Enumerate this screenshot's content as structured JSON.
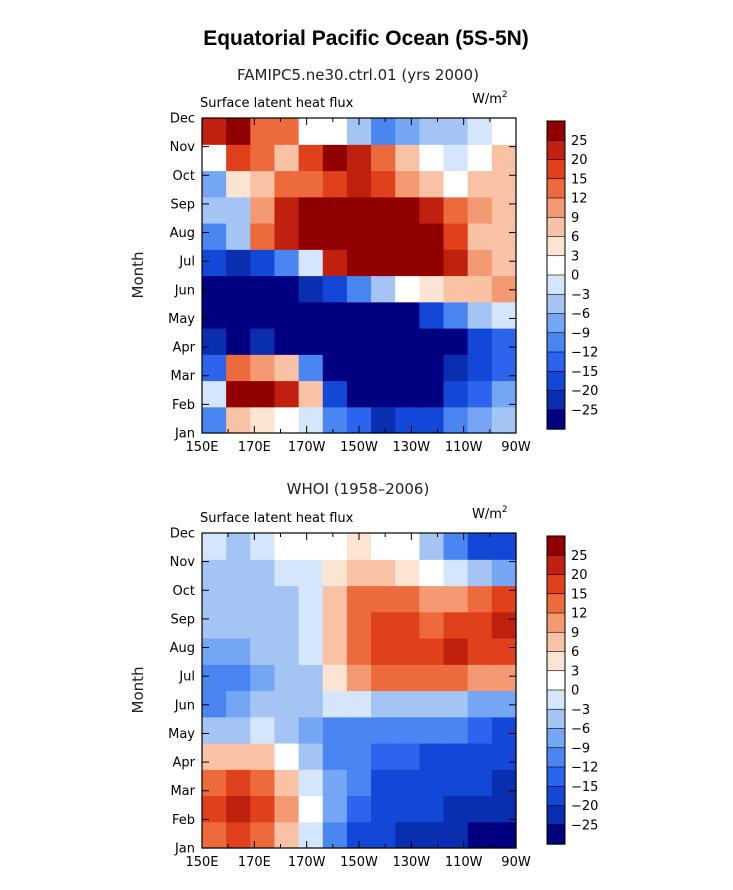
{
  "title": "Equatorial Pacific Ocean (5S-5N)",
  "colors": [
    "#000080",
    "#0a2eb0",
    "#1347d8",
    "#2c64ee",
    "#4a86f2",
    "#74a6f4",
    "#a4c4f4",
    "#d6e6fa",
    "#ffffff",
    "#fce4d2",
    "#f9c2a4",
    "#f49a72",
    "#ed6a3c",
    "#e0401c",
    "#c0200e",
    "#900000"
  ],
  "chart_data": [
    {
      "type": "heatmap",
      "subtitle": "FAMIPC5.ne30.ctrl.01 (yrs 2000)",
      "label_left": "Surface latent heat flux",
      "units_base": "W/m",
      "units_exp": "2",
      "ylabel": "Month",
      "xlabel": "",
      "x_ticks": [
        "150E",
        "170E",
        "170W",
        "150W",
        "130W",
        "110W",
        "90W"
      ],
      "y_ticks": [
        "Jan",
        "Feb",
        "Mar",
        "Apr",
        "May",
        "Jun",
        "Jul",
        "Aug",
        "Sep",
        "Oct",
        "Nov",
        "Dec"
      ],
      "xlim_lon": [
        150,
        270
      ],
      "levels": [
        -25,
        -20,
        -15,
        -12,
        -9,
        -6,
        -3,
        0,
        3,
        6,
        9,
        12,
        15,
        20,
        25
      ],
      "level_labels": [
        "25",
        "20",
        "15",
        "12",
        "9",
        "6",
        "3",
        "0",
        "−3",
        "−6",
        "−9",
        "−12",
        "−15",
        "−20",
        "−25"
      ],
      "grid_lons": [
        150,
        160,
        170,
        180,
        190,
        200,
        210,
        220,
        230,
        240,
        250,
        260,
        270
      ],
      "grid_values": [
        [
          -10,
          6,
          3,
          0,
          -3,
          -12,
          -15,
          -22,
          -20,
          -18,
          -12,
          -8,
          -5
        ],
        [
          -2,
          30,
          28,
          22,
          6,
          -20,
          -28,
          -30,
          -30,
          -26,
          -20,
          -14,
          -8
        ],
        [
          -14,
          14,
          10,
          6,
          -10,
          -28,
          -30,
          -30,
          -30,
          -28,
          -24,
          -20,
          -14
        ],
        [
          -24,
          -26,
          -24,
          -26,
          -30,
          -30,
          -30,
          -30,
          -30,
          -30,
          -28,
          -20,
          -15
        ],
        [
          -30,
          -30,
          -30,
          -30,
          -30,
          -30,
          -30,
          -30,
          -26,
          -18,
          -12,
          -6,
          -2
        ],
        [
          -26,
          -28,
          -30,
          -26,
          -24,
          -18,
          -10,
          -4,
          0,
          4,
          6,
          8,
          10
        ],
        [
          -18,
          -24,
          -20,
          -12,
          -2,
          20,
          26,
          28,
          28,
          28,
          22,
          10,
          8
        ],
        [
          -12,
          -6,
          12,
          22,
          26,
          28,
          28,
          28,
          28,
          26,
          16,
          8,
          6
        ],
        [
          -6,
          -4,
          10,
          22,
          28,
          28,
          28,
          28,
          28,
          22,
          14,
          10,
          6
        ],
        [
          -8,
          4,
          8,
          12,
          14,
          18,
          20,
          16,
          10,
          6,
          2,
          6,
          8
        ],
        [
          2,
          18,
          12,
          8,
          18,
          26,
          24,
          14,
          6,
          2,
          -2,
          2,
          6
        ],
        [
          24,
          26,
          14,
          12,
          2,
          0,
          -6,
          -10,
          -8,
          -6,
          -4,
          -2,
          2
        ]
      ]
    },
    {
      "type": "heatmap",
      "subtitle": "WHOI (1958–2006)",
      "label_left": "Surface latent heat flux",
      "units_base": "W/m",
      "units_exp": "2",
      "ylabel": "Month",
      "xlabel": "",
      "x_ticks": [
        "150E",
        "170E",
        "170W",
        "150W",
        "130W",
        "110W",
        "90W"
      ],
      "y_ticks": [
        "Jan",
        "Feb",
        "Mar",
        "Apr",
        "May",
        "Jun",
        "Jul",
        "Aug",
        "Sep",
        "Oct",
        "Nov",
        "Dec"
      ],
      "xlim_lon": [
        150,
        270
      ],
      "levels": [
        -25,
        -20,
        -15,
        -12,
        -9,
        -6,
        -3,
        0,
        3,
        6,
        9,
        12,
        15,
        20,
        25
      ],
      "level_labels": [
        "25",
        "20",
        "15",
        "12",
        "9",
        "6",
        "3",
        "0",
        "−3",
        "−6",
        "−9",
        "−12",
        "−15",
        "−20",
        "−25"
      ],
      "grid_lons": [
        150,
        160,
        170,
        180,
        190,
        200,
        210,
        220,
        230,
        240,
        250,
        260,
        270
      ],
      "grid_values": [
        [
          12,
          16,
          14,
          8,
          -2,
          -10,
          -16,
          -20,
          -22,
          -22,
          -24,
          -26,
          -28
        ],
        [
          18,
          20,
          16,
          10,
          0,
          -8,
          -14,
          -18,
          -20,
          -20,
          -22,
          -24,
          -24
        ],
        [
          14,
          16,
          12,
          6,
          -2,
          -8,
          -12,
          -16,
          -16,
          -18,
          -18,
          -20,
          -22
        ],
        [
          6,
          8,
          6,
          2,
          -4,
          -10,
          -12,
          -14,
          -14,
          -16,
          -16,
          -18,
          -20
        ],
        [
          -4,
          -4,
          -2,
          -4,
          -8,
          -10,
          -12,
          -12,
          -12,
          -12,
          -12,
          -14,
          -16
        ],
        [
          -10,
          -8,
          -6,
          -6,
          -4,
          -2,
          -2,
          -4,
          -4,
          -6,
          -6,
          -8,
          -8
        ],
        [
          -10,
          -12,
          -8,
          -6,
          -4,
          4,
          10,
          12,
          12,
          12,
          12,
          10,
          10
        ],
        [
          -8,
          -8,
          -6,
          -4,
          -2,
          6,
          12,
          16,
          18,
          18,
          20,
          18,
          16
        ],
        [
          -6,
          -6,
          -6,
          -4,
          -2,
          6,
          14,
          16,
          16,
          14,
          16,
          18,
          22
        ],
        [
          -4,
          -4,
          -4,
          -4,
          -2,
          6,
          14,
          14,
          12,
          10,
          10,
          14,
          16
        ],
        [
          -4,
          -6,
          -4,
          -2,
          -2,
          4,
          8,
          6,
          4,
          2,
          -2,
          -4,
          -8
        ],
        [
          -2,
          -4,
          -2,
          0,
          0,
          2,
          4,
          2,
          0,
          -4,
          -10,
          -16,
          -20
        ]
      ]
    }
  ]
}
